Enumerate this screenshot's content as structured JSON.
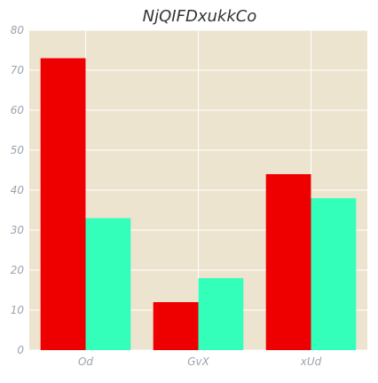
{
  "chart_data": {
    "type": "bar",
    "title": "NjQIFDxukkCo",
    "xlabel": "",
    "ylabel": "",
    "categories": [
      "Od",
      "GvX",
      "xUd"
    ],
    "series": [
      {
        "values": [
          73,
          12,
          44
        ],
        "color": "#ee0000"
      },
      {
        "values": [
          33,
          18,
          38
        ],
        "color": "#33ffbb"
      }
    ],
    "ylim": [
      0,
      80
    ],
    "yticks": [
      0,
      10,
      20,
      30,
      40,
      50,
      60,
      70,
      80
    ],
    "grid": true,
    "legend": "none"
  },
  "colors": {
    "plot_background": "#ede4cf",
    "grid": "#ffffff"
  }
}
